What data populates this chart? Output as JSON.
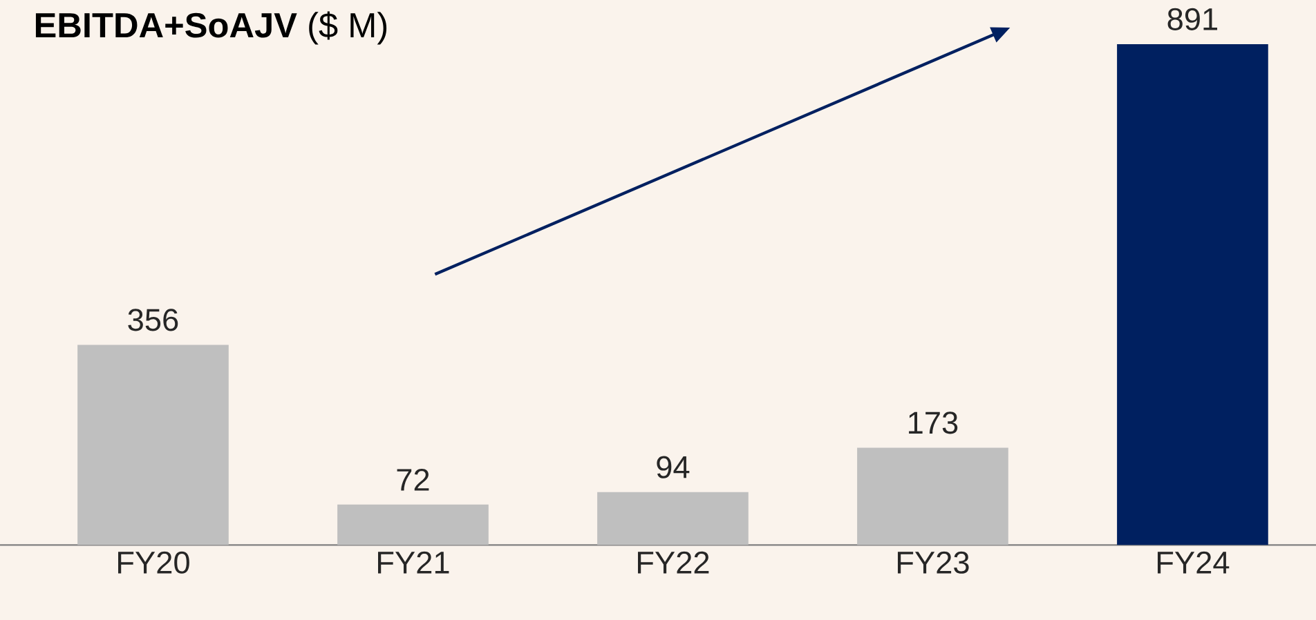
{
  "chart_data": {
    "type": "bar",
    "title": "**EBITDA+SoAJV** ($ M)",
    "categories": [
      "FY20",
      "FY21",
      "FY22",
      "FY23",
      "FY24"
    ],
    "values": [
      356,
      72,
      94,
      173,
      891
    ],
    "colors": [
      "#bfbfbf",
      "#bfbfbf",
      "#bfbfbf",
      "#bfbfbf",
      "#002060"
    ],
    "data_labels": true
  }
}
